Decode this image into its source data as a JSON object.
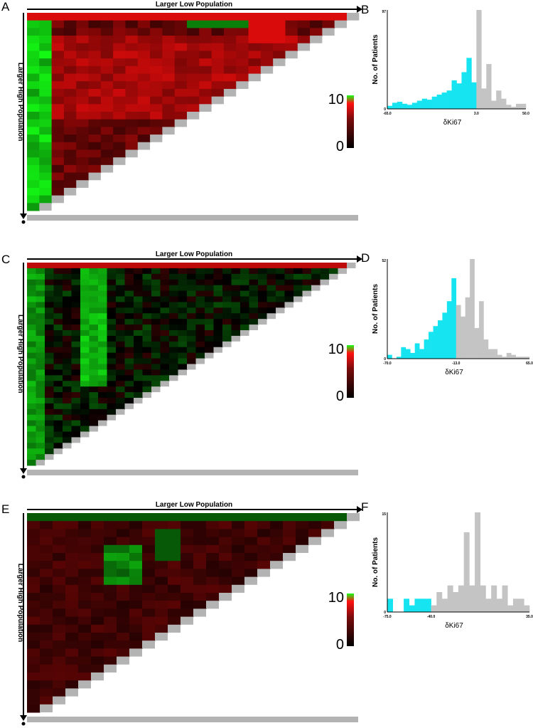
{
  "figure": {
    "panels": [
      {
        "letter": "A",
        "type": "heatmap"
      },
      {
        "letter": "B",
        "type": "histogram"
      },
      {
        "letter": "C",
        "type": "heatmap"
      },
      {
        "letter": "D",
        "type": "histogram"
      },
      {
        "letter": "E",
        "type": "heatmap"
      },
      {
        "letter": "F",
        "type": "histogram"
      }
    ]
  },
  "colors": {
    "low_split": "#16e4f0",
    "high_split": "#c4c4c4",
    "heat_low": "#000000",
    "heat_mid": "#7a0c0c",
    "heat_high": "#ff1010",
    "heat_green": "#15ff15",
    "diagonal_gray": "#b3b3b3"
  },
  "chart_data": [
    {
      "type": "heatmap",
      "panel": "A",
      "xlabel": "Larger Low Population",
      "ylabel": "Larger High Population",
      "colorbar": {
        "min_label": "0",
        "max_label": "10",
        "vmin": 0,
        "vmax": 10
      },
      "n": 26,
      "seed": 11,
      "pattern": "greenLeft"
    },
    {
      "type": "bar",
      "panel": "B",
      "title": "",
      "xlabel": "δKi67",
      "ylabel": "No. of Patients",
      "ymax_label": "97",
      "ylim": [
        0,
        97
      ],
      "xtick_labels": [
        "-65.0",
        "3.0",
        "50.0"
      ],
      "split_index": 18,
      "values": [
        3,
        6,
        7,
        5,
        4,
        6,
        8,
        10,
        9,
        12,
        14,
        16,
        18,
        28,
        25,
        36,
        50,
        26,
        97,
        20,
        44,
        8,
        18,
        10,
        4,
        2,
        5,
        5
      ]
    },
    {
      "type": "heatmap",
      "panel": "C",
      "xlabel": "Larger Low Population",
      "ylabel": "Larger High Population",
      "colorbar": {
        "min_label": "0",
        "max_label": "10",
        "vmin": 0,
        "vmax": 10
      },
      "n": 36,
      "seed": 23,
      "pattern": "greenBlock"
    },
    {
      "type": "bar",
      "panel": "D",
      "title": "",
      "xlabel": "δKi67",
      "ylabel": "No. of Patients",
      "ymax_label": "52",
      "ylim": [
        0,
        52
      ],
      "xtick_labels": [
        "-70.0",
        "-13.0",
        "65.0"
      ],
      "split_index": 15,
      "values": [
        2,
        0,
        1,
        6,
        5,
        3,
        8,
        5,
        10,
        14,
        17,
        20,
        24,
        30,
        42,
        28,
        22,
        32,
        52,
        16,
        30,
        10,
        5,
        5,
        2,
        1,
        3,
        2,
        1,
        1,
        1
      ]
    },
    {
      "type": "heatmap",
      "panel": "E",
      "xlabel": "Larger Low Population",
      "ylabel": "Larger High Population",
      "colorbar": {
        "min_label": "0",
        "max_label": "10",
        "vmin": 0,
        "vmax": 10
      },
      "n": 25,
      "seed": 37,
      "pattern": "redLow"
    },
    {
      "type": "bar",
      "panel": "F",
      "title": "",
      "xlabel": "δKi67",
      "ylabel": "No. of Patients",
      "ymax_label": "15",
      "ylim": [
        0,
        15
      ],
      "xtick_labels": [
        "-75.0",
        "-40.0",
        "35.0"
      ],
      "split_index": 8,
      "values": [
        2,
        0,
        0,
        2,
        1,
        2,
        2,
        2,
        1,
        3,
        2,
        4,
        3,
        4,
        12,
        4,
        15,
        4,
        2,
        4,
        2,
        4,
        1,
        2,
        2,
        1
      ]
    }
  ]
}
